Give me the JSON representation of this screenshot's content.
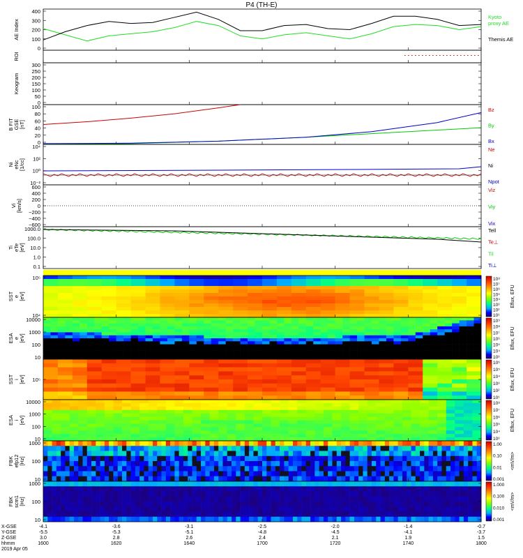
{
  "title": "P4 (TH-E)",
  "colors": {
    "black": "#000000",
    "red": "#cc0000",
    "green": "#00cc00",
    "blue": "#0000cc",
    "ae_green": "#22dd22"
  },
  "chart_data": [
    {
      "id": "ae",
      "type": "line",
      "ylabel": "AE Index",
      "ylim": [
        0,
        400
      ],
      "yticks": [
        "400",
        "300",
        "200",
        "100",
        "0"
      ],
      "legend": [
        "Kyoto",
        "proxy AE",
        "Themis AE"
      ],
      "x_hours": [
        16.0,
        16.1,
        16.2,
        16.3,
        16.4,
        16.5,
        16.6,
        16.7,
        16.8,
        16.9,
        17.0,
        17.1,
        17.2,
        17.3,
        17.4,
        17.5,
        17.6,
        17.7,
        17.8,
        17.9,
        18.0
      ],
      "series": [
        {
          "name": "Kyoto proxy AE",
          "color": "ae_green",
          "values": [
            210,
            150,
            90,
            140,
            160,
            180,
            220,
            280,
            240,
            140,
            110,
            150,
            170,
            140,
            110,
            160,
            230,
            250,
            240,
            200,
            230
          ]
        },
        {
          "name": "Themis AE",
          "color": "black",
          "values": [
            100,
            180,
            240,
            280,
            260,
            270,
            320,
            370,
            300,
            190,
            190,
            240,
            250,
            210,
            200,
            260,
            330,
            330,
            300,
            240,
            250
          ]
        }
      ]
    },
    {
      "id": "roi",
      "type": "line",
      "ylabel": "ROI",
      "ylim": [
        0,
        1
      ],
      "yticks": []
    },
    {
      "id": "keogram",
      "type": "line",
      "ylabel": "Keogram",
      "ylim": [
        0,
        300
      ],
      "yticks": [
        "300",
        "250",
        "200",
        "150",
        "100",
        "50",
        "0"
      ]
    },
    {
      "id": "bfield",
      "type": "line",
      "ylabel_lines": [
        "B FIT",
        "GSE",
        "[nT]"
      ],
      "ylim": [
        0,
        100
      ],
      "yticks": [
        "100",
        "80",
        "60",
        "40",
        "20",
        "0"
      ],
      "legend": [
        "Bz",
        "By",
        "Bx"
      ],
      "series": [
        {
          "name": "Bz",
          "color": "red",
          "x_hours": [
            16.0,
            16.2,
            16.4,
            16.6,
            16.8,
            16.9
          ],
          "values": [
            50,
            57,
            66,
            77,
            92,
            100
          ]
        },
        {
          "name": "By",
          "color": "green",
          "x_hours": [
            16.0,
            16.4,
            16.8,
            17.2,
            17.6,
            18.0
          ],
          "values": [
            0,
            2,
            8,
            18,
            30,
            42
          ]
        },
        {
          "name": "Bx",
          "color": "blue",
          "x_hours": [
            16.0,
            16.4,
            16.8,
            17.2,
            17.5,
            17.8,
            18.0
          ],
          "values": [
            2,
            3,
            8,
            18,
            32,
            55,
            80
          ]
        }
      ]
    },
    {
      "id": "density",
      "type": "line",
      "ylabel_lines": [
        "Ni",
        "eNc",
        "[1/cc]"
      ],
      "yticks": [
        "10⁴",
        "10²",
        "10⁰",
        "10⁻²"
      ],
      "legend": [
        "Ne",
        "Ni",
        "Npot"
      ]
    },
    {
      "id": "velocity",
      "type": "line",
      "ylabel_lines": [
        "Vi",
        "[km/s]"
      ],
      "ylim": [
        -600,
        600
      ],
      "yticks": [
        "600",
        "400",
        "200",
        "0",
        "−200",
        "−400",
        "−600"
      ],
      "legend": [
        "Viz",
        "Viy",
        "Vix"
      ]
    },
    {
      "id": "temperature",
      "type": "line",
      "ylabel_lines": [
        "Ti",
        "eTe",
        "[eV]"
      ],
      "yticks": [
        "1000.0",
        "100.0",
        "10.0",
        "1.0",
        "0.1"
      ],
      "legend": [
        "Tell",
        "Te⊥",
        "Til",
        "Ti⊥"
      ]
    },
    {
      "id": "sst_e",
      "type": "heatmap",
      "ylabel_lines": [
        "SST",
        "e",
        "[eV]"
      ],
      "yticks": [
        "10⁵",
        "10⁴"
      ],
      "cbar_label": "Eflux, EFU",
      "cbar_ticks": [
        "10⁸",
        "10⁷",
        "10⁶",
        "10⁵",
        "10⁴",
        "10³",
        "10²",
        "10¹"
      ]
    },
    {
      "id": "esa_e",
      "type": "heatmap",
      "ylabel_lines": [
        "ESA",
        "e",
        "[eV]"
      ],
      "yticks": [
        "10000",
        "1000",
        "100",
        "10"
      ],
      "cbar_label": "Eflux, EFU",
      "cbar_ticks": [
        "10⁹",
        "10⁸",
        "10⁷",
        "10⁶",
        "10⁵",
        "10⁴",
        "10³"
      ]
    },
    {
      "id": "sst_i",
      "type": "heatmap",
      "ylabel_lines": [
        "SST",
        "i",
        "[eV]"
      ],
      "yticks": [
        "10⁵"
      ],
      "cbar_label": "Eflux, EFU",
      "cbar_ticks": [
        "10⁶",
        "10⁵",
        "10⁴",
        "10³",
        "10²",
        "10¹"
      ]
    },
    {
      "id": "esa_i",
      "type": "heatmap",
      "ylabel_lines": [
        "ESA",
        "i",
        "[eV]"
      ],
      "yticks": [
        "10000",
        "1000",
        "100",
        "10"
      ],
      "cbar_label": "Eflux, EFU",
      "cbar_ticks": [
        "10⁸",
        "10⁷",
        "10⁶",
        "10⁵",
        "10⁴",
        "10³"
      ]
    },
    {
      "id": "fbk_e",
      "type": "heatmap",
      "ylabel_lines": [
        "FBK",
        "efp12",
        "[Hz]"
      ],
      "yticks": [
        "1000",
        "100",
        "10"
      ],
      "cbar_label": "<mV/m>",
      "cbar_ticks": [
        "1.00",
        "0.10",
        "0.01",
        "0.001"
      ]
    },
    {
      "id": "fbk_b",
      "type": "heatmap",
      "ylabel_lines": [
        "FBK",
        "scm1",
        "[Hz]"
      ],
      "yticks": [
        "1000",
        "100",
        "10"
      ],
      "cbar_label": "<mV/m>",
      "cbar_ticks": [
        "1.000",
        "0.100",
        "0.010",
        "0.001"
      ]
    }
  ],
  "xaxis": {
    "row_labels": [
      "X-GSE",
      "Y-GSE",
      "Z-GSE",
      "hhmm",
      "2019 Apr 05"
    ],
    "rows": [
      [
        "-4.1",
        "-3.6",
        "-3.1",
        "-2.5",
        "-2.0",
        "-1.4",
        "-0.7"
      ],
      [
        "-5.5",
        "-5.3",
        "-5.1",
        "-4.8",
        "-4.5",
        "-4.1",
        "-3.7"
      ],
      [
        "3.0",
        "2.8",
        "2.6",
        "2.4",
        "2.1",
        "1.9",
        "1.5"
      ],
      [
        "1600",
        "1620",
        "1640",
        "1700",
        "1720",
        "1740",
        "1800"
      ]
    ]
  }
}
